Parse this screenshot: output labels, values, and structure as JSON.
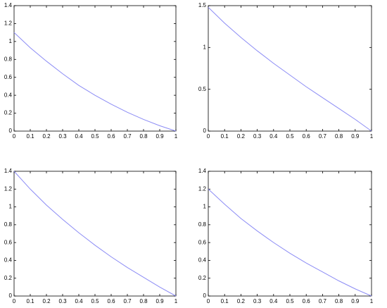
{
  "chart_data": [
    {
      "type": "line",
      "x": [
        0,
        0.1,
        0.2,
        0.3,
        0.4,
        0.5,
        0.6,
        0.7,
        0.8,
        0.9,
        1
      ],
      "series": [
        {
          "color": "#8c8cf5",
          "values": [
            1.1,
            0.93,
            0.78,
            0.64,
            0.51,
            0.4,
            0.3,
            0.21,
            0.13,
            0.06,
            0
          ]
        }
      ],
      "xlim": [
        0,
        1
      ],
      "ylim": [
        0,
        1.4
      ],
      "xticks": [
        0,
        0.1,
        0.2,
        0.3,
        0.4,
        0.5,
        0.6,
        0.7,
        0.8,
        0.9,
        1
      ],
      "yticks": [
        0,
        0.2,
        0.4,
        0.6,
        0.8,
        1,
        1.2,
        1.4
      ]
    },
    {
      "type": "line",
      "x": [
        0,
        0.1,
        0.2,
        0.3,
        0.4,
        0.5,
        0.6,
        0.7,
        0.8,
        0.9,
        1
      ],
      "series": [
        {
          "color": "#8c8cf5",
          "values": [
            1.48,
            1.29,
            1.12,
            0.96,
            0.81,
            0.67,
            0.53,
            0.4,
            0.27,
            0.14,
            0
          ]
        }
      ],
      "xlim": [
        0,
        1
      ],
      "ylim": [
        0,
        1.5
      ],
      "xticks": [
        0,
        0.1,
        0.2,
        0.3,
        0.4,
        0.5,
        0.6,
        0.7,
        0.8,
        0.9,
        1
      ],
      "yticks": [
        0,
        0.5,
        1,
        1.5
      ]
    },
    {
      "type": "line",
      "x": [
        0,
        0.1,
        0.2,
        0.3,
        0.4,
        0.5,
        0.6,
        0.7,
        0.8,
        0.9,
        1
      ],
      "series": [
        {
          "color": "#8c8cf5",
          "values": [
            1.4,
            1.2,
            1.02,
            0.86,
            0.71,
            0.57,
            0.44,
            0.32,
            0.21,
            0.1,
            0
          ]
        }
      ],
      "xlim": [
        0,
        1
      ],
      "ylim": [
        0,
        1.4
      ],
      "xticks": [
        0,
        0.1,
        0.2,
        0.3,
        0.4,
        0.5,
        0.6,
        0.7,
        0.8,
        0.9,
        1
      ],
      "yticks": [
        0,
        0.2,
        0.4,
        0.6,
        0.8,
        1,
        1.2,
        1.4
      ]
    },
    {
      "type": "line",
      "x": [
        0,
        0.1,
        0.2,
        0.3,
        0.4,
        0.5,
        0.6,
        0.7,
        0.8,
        0.9,
        1
      ],
      "series": [
        {
          "color": "#8c8cf5",
          "values": [
            1.2,
            1.03,
            0.87,
            0.73,
            0.6,
            0.48,
            0.37,
            0.27,
            0.17,
            0.08,
            0
          ]
        }
      ],
      "xlim": [
        0,
        1
      ],
      "ylim": [
        0,
        1.4
      ],
      "xticks": [
        0,
        0.1,
        0.2,
        0.3,
        0.4,
        0.5,
        0.6,
        0.7,
        0.8,
        0.9,
        1
      ],
      "yticks": [
        0,
        0.2,
        0.4,
        0.6,
        0.8,
        1,
        1.2,
        1.4
      ]
    }
  ]
}
